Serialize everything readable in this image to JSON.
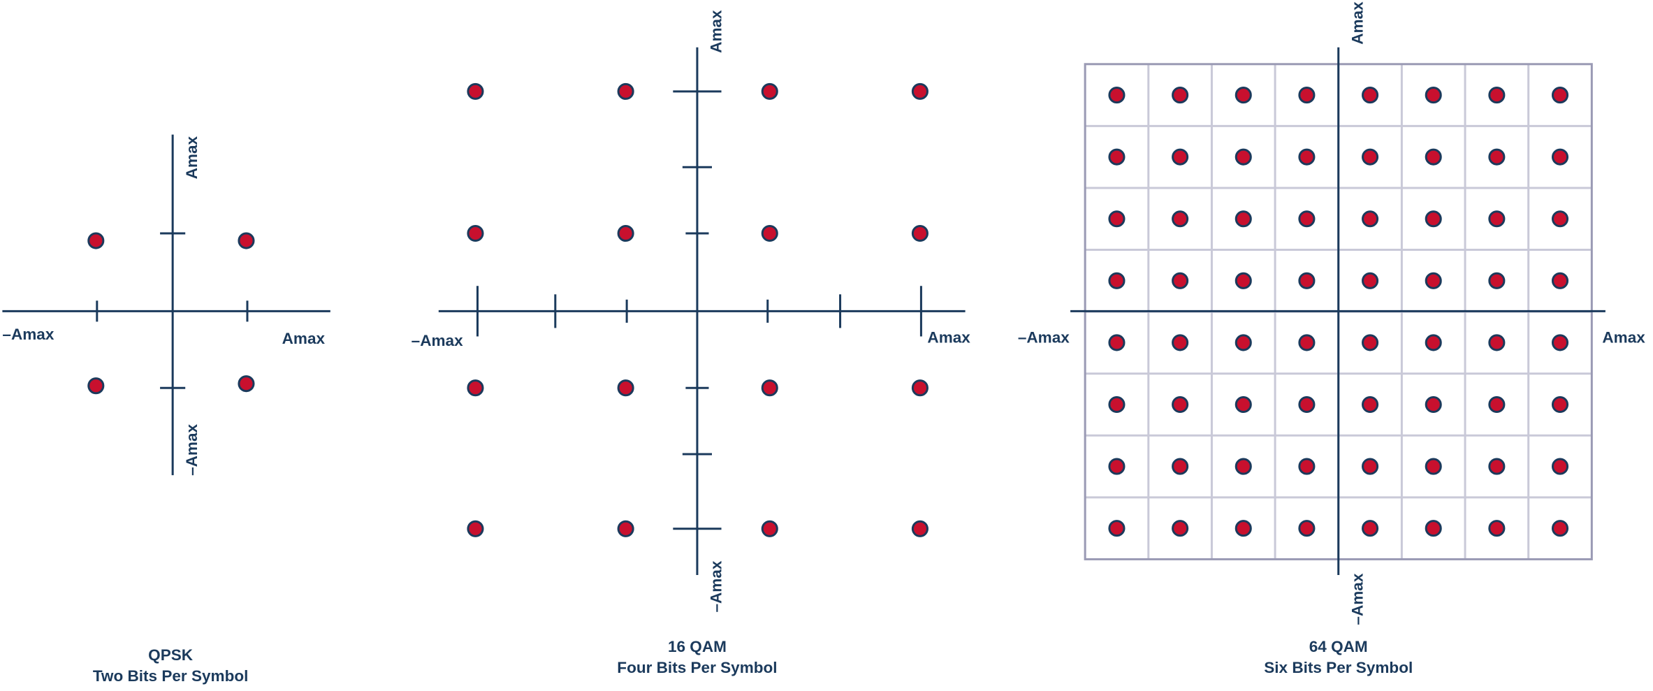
{
  "diagrams": [
    {
      "title": "QPSK",
      "subtitle": "Two Bits Per Symbol",
      "labels": {
        "x_min": "–Amax",
        "x_max": "Amax",
        "y_max": "Amax",
        "y_min": "–Amax"
      }
    },
    {
      "title": "16 QAM",
      "subtitle": "Four Bits Per Symbol",
      "labels": {
        "x_min": "–Amax",
        "x_max": "Amax",
        "y_max": "Amax",
        "y_min": "–Amax"
      }
    },
    {
      "title": "64 QAM",
      "subtitle": "Six Bits Per Symbol",
      "labels": {
        "x_min": "–Amax",
        "x_max": "Amax",
        "y_max": "Amax",
        "y_min": "–Amax"
      }
    }
  ]
}
